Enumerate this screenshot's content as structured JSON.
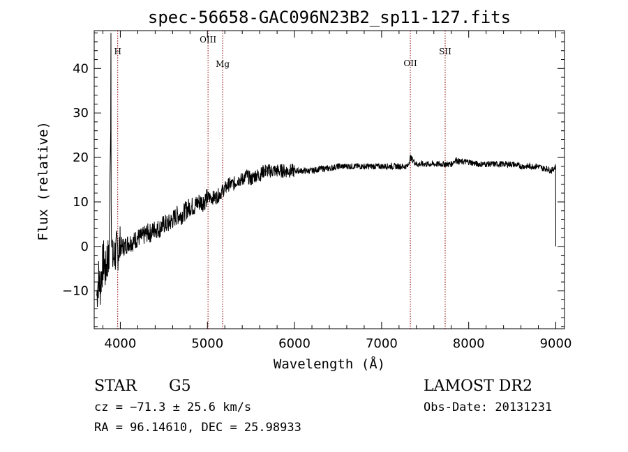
{
  "chart_data": {
    "type": "line",
    "title": "spec-56658-GAC096N23B2_sp11-127.fits",
    "xlabel": "Wavelength (Å)",
    "ylabel": "Flux (relative)",
    "xlim": [
      3700,
      9100
    ],
    "ylim": [
      -18.5,
      48.5
    ],
    "xticks": [
      "4000",
      "5000",
      "6000",
      "7000",
      "8000",
      "9000"
    ],
    "yticks": [
      "−10",
      "0",
      "10",
      "20",
      "30",
      "40"
    ],
    "grid": false,
    "lines": [
      {
        "label": "H",
        "wavelength": 3970
      },
      {
        "label": "OIII",
        "wavelength": 5007
      },
      {
        "label": "Mg",
        "wavelength": 5175
      },
      {
        "label": "OII",
        "wavelength": 7330
      },
      {
        "label": "SII",
        "wavelength": 7730
      }
    ],
    "series": [
      {
        "x": [
          3730,
          3750,
          3770,
          3790,
          3810,
          3830,
          3850,
          3870,
          3889,
          3892,
          3895,
          3898,
          3910,
          3930,
          3960,
          4000,
          4050,
          4100,
          4150,
          4200,
          4250,
          4300,
          4350,
          4400,
          4450,
          4500,
          4550,
          4600,
          4650,
          4700,
          4750,
          4800,
          4850,
          4900,
          4950,
          5000,
          5050,
          5100,
          5150,
          5200,
          5250,
          5300,
          5350,
          5400,
          5450,
          5500,
          5550,
          5600,
          5650,
          5700,
          5800,
          5900,
          6000,
          6100,
          6200,
          6300,
          6400,
          6500,
          6600,
          6700,
          6800,
          6900,
          7000,
          7100,
          7200,
          7300,
          7330,
          7400,
          7500,
          7600,
          7700,
          7800,
          7850,
          7900,
          8000,
          8100,
          8200,
          8300,
          8400,
          8500,
          8600,
          8700,
          8800,
          8850,
          8900,
          8950,
          9000
        ],
        "y": [
          -11,
          -7,
          -9,
          -5,
          -3,
          -6,
          -2,
          -4,
          26,
          48,
          10,
          2,
          -3,
          -2,
          -1,
          0,
          0,
          1,
          1,
          2,
          2,
          3,
          3,
          4,
          4,
          5,
          5,
          6,
          7,
          7,
          8,
          9,
          9,
          10,
          10,
          11,
          11,
          11,
          12,
          13,
          14,
          14,
          15,
          15,
          16,
          15,
          16,
          16,
          17,
          17,
          17,
          17,
          17,
          17,
          17,
          17.5,
          17.5,
          18,
          18,
          18,
          18,
          18,
          18,
          18,
          18,
          18,
          20,
          18.5,
          18.5,
          18.5,
          18.5,
          18.5,
          19.5,
          19,
          19,
          18.5,
          18.5,
          18.5,
          18.5,
          18.5,
          18,
          18,
          18,
          17.5,
          17.5,
          17,
          18
        ]
      }
    ]
  },
  "info": {
    "class": "STAR",
    "subclass": "G5",
    "survey": "LAMOST DR2",
    "cz": "cz = −71.3 ± 25.6 km/s",
    "obsdate": "Obs-Date: 20131231",
    "radec": "RA =  96.14610, DEC =  25.98933"
  }
}
